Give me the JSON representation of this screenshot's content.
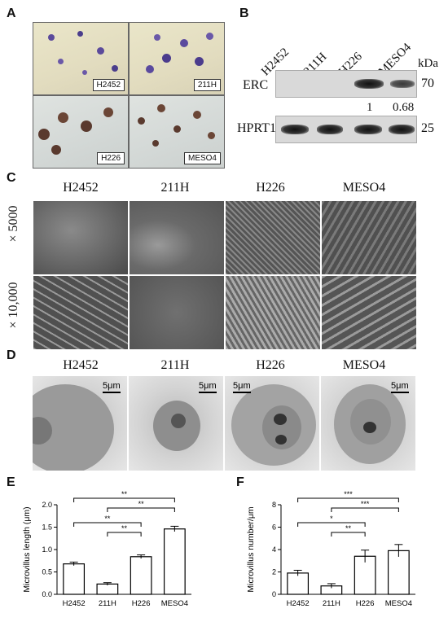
{
  "panel_labels": {
    "a": "A",
    "b": "B",
    "c": "C",
    "d": "D",
    "e": "E",
    "f": "F"
  },
  "panel_a": {
    "images": [
      {
        "label": "H2452"
      },
      {
        "label": "211H"
      },
      {
        "label": "H226"
      },
      {
        "label": "MESO4"
      }
    ]
  },
  "panel_b": {
    "lanes": [
      "H2452",
      "211H",
      "H226",
      "MESO4"
    ],
    "kda_label": "kDa",
    "blots": [
      {
        "name": "ERC",
        "kda": "70",
        "intensity": [
          0,
          0,
          1,
          0.68
        ]
      },
      {
        "name": "HPRT1",
        "kda": "25",
        "intensity": [
          1,
          1,
          1,
          1
        ]
      }
    ],
    "quant": [
      "1",
      "0.68"
    ]
  },
  "panel_c": {
    "columns": [
      "H2452",
      "211H",
      "H226",
      "MESO4"
    ],
    "rows": [
      "× 5000",
      "× 10,000"
    ]
  },
  "panel_d": {
    "columns": [
      "H2452",
      "211H",
      "H226",
      "MESO4"
    ],
    "scale": "5μm"
  },
  "chart_data": [
    {
      "type": "bar",
      "categories": [
        "H2452",
        "211H",
        "H226",
        "MESO4"
      ],
      "values": [
        0.68,
        0.23,
        0.84,
        1.46
      ],
      "errors": [
        0.04,
        0.03,
        0.04,
        0.06
      ],
      "ylabel": "Microvillus length (μm)",
      "ylim": [
        0,
        2.0
      ],
      "yticks": [
        "0.0",
        "0.5",
        "1.0",
        "1.5",
        "2.0"
      ],
      "significance": [
        {
          "from": "H2452",
          "to": "MESO4",
          "label": "**"
        },
        {
          "from": "211H",
          "to": "MESO4",
          "label": "**"
        },
        {
          "from": "H2452",
          "to": "H226",
          "label": "**"
        },
        {
          "from": "211H",
          "to": "H226",
          "label": "**"
        }
      ]
    },
    {
      "type": "bar",
      "categories": [
        "H2452",
        "211H",
        "H226",
        "MESO4"
      ],
      "values": [
        1.9,
        0.75,
        3.4,
        3.9
      ],
      "errors": [
        0.25,
        0.2,
        0.55,
        0.55
      ],
      "ylabel": "Microvillus number/μm",
      "ylim": [
        0,
        8
      ],
      "yticks": [
        "0",
        "2",
        "4",
        "6",
        "8"
      ],
      "significance": [
        {
          "from": "H2452",
          "to": "MESO4",
          "label": "***"
        },
        {
          "from": "211H",
          "to": "MESO4",
          "label": "***"
        },
        {
          "from": "H2452",
          "to": "H226",
          "label": "*"
        },
        {
          "from": "211H",
          "to": "H226",
          "label": "**"
        }
      ]
    }
  ]
}
